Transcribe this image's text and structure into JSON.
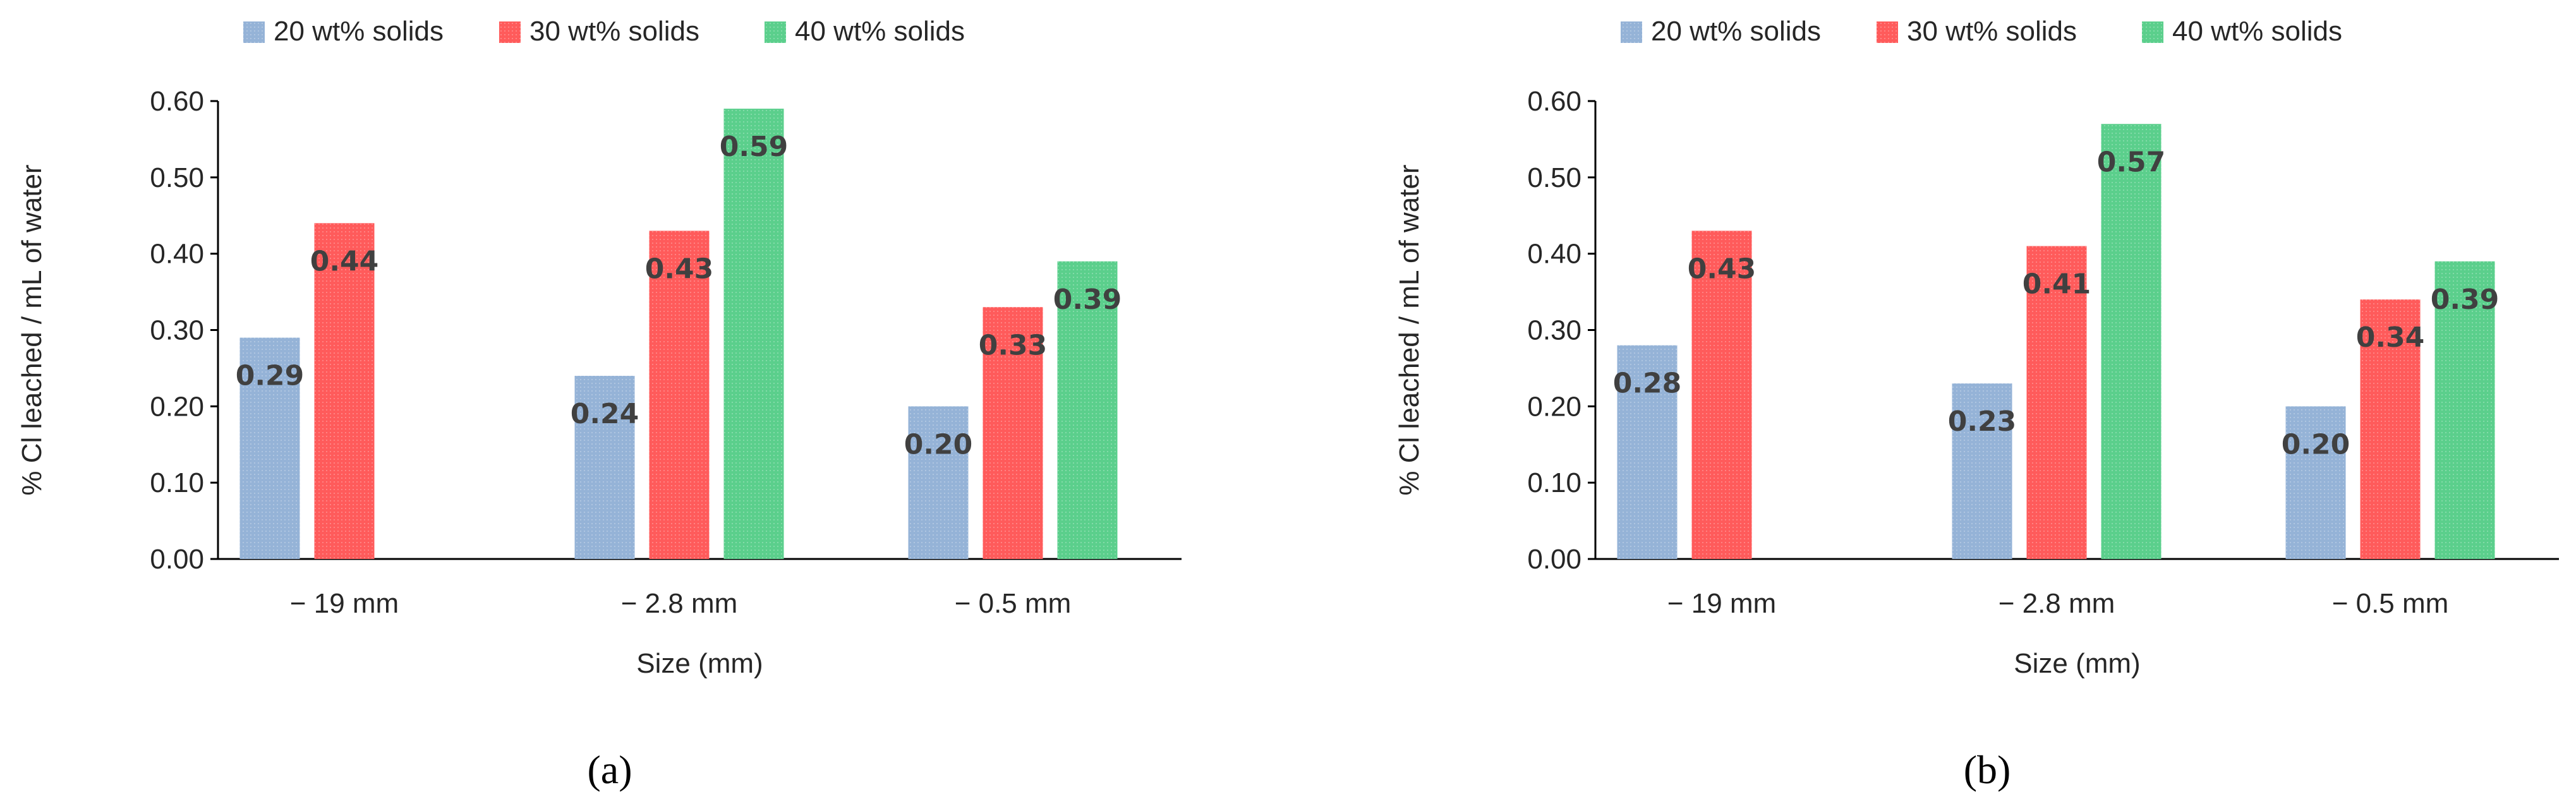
{
  "colors": {
    "series_20": "#95B3D7",
    "series_30": "#FF5B5B",
    "series_40": "#5BCF8C",
    "axis": "#000000",
    "text": "#262626",
    "data_label": "#404040"
  },
  "chart_data": [
    {
      "panel": "a",
      "panel_label": "(a)",
      "type": "bar",
      "categories": [
        "− 19 mm",
        "− 2.8 mm",
        "− 0.5 mm"
      ],
      "series": [
        {
          "name": "20 wt% solids",
          "values": [
            0.29,
            0.24,
            0.2
          ],
          "labels": [
            "0.29",
            "0.24",
            "0.20"
          ]
        },
        {
          "name": "30 wt% solids",
          "values": [
            0.44,
            0.43,
            0.33
          ],
          "labels": [
            "0.44",
            "0.43",
            "0.33"
          ]
        },
        {
          "name": "40 wt% solids",
          "values": [
            null,
            0.59,
            0.39
          ],
          "labels": [
            "",
            "0.59",
            "0.39"
          ]
        }
      ],
      "title": "",
      "xlabel": "Size (mm)",
      "ylabel": "% Cl leached / mL of water",
      "ylim": [
        0,
        0.6
      ],
      "yticks": [
        "0.00",
        "0.10",
        "0.20",
        "0.30",
        "0.40",
        "0.50",
        "0.60"
      ],
      "legend": "top",
      "grid": false
    },
    {
      "panel": "b",
      "panel_label": "(b)",
      "type": "bar",
      "categories": [
        "− 19 mm",
        "− 2.8 mm",
        "− 0.5 mm"
      ],
      "series": [
        {
          "name": "20 wt% solids",
          "values": [
            0.28,
            0.23,
            0.2
          ],
          "labels": [
            "0.28",
            "0.23",
            "0.20"
          ]
        },
        {
          "name": "30 wt% solids",
          "values": [
            0.43,
            0.41,
            0.34
          ],
          "labels": [
            "0.43",
            "0.41",
            "0.34"
          ]
        },
        {
          "name": "40 wt% solids",
          "values": [
            null,
            0.57,
            0.39
          ],
          "labels": [
            "",
            "0.57",
            "0.39"
          ]
        }
      ],
      "title": "",
      "xlabel": "Size (mm)",
      "ylabel": "% Cl leached / mL of water",
      "ylim": [
        0,
        0.6
      ],
      "yticks": [
        "0.00",
        "0.10",
        "0.20",
        "0.30",
        "0.40",
        "0.50",
        "0.60"
      ],
      "legend": "top",
      "grid": false
    }
  ]
}
